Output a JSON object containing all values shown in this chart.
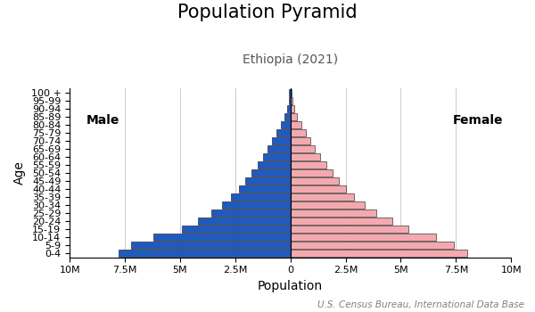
{
  "title": "Population Pyramid",
  "subtitle": "Ethiopia (2021)",
  "xlabel": "Population",
  "ylabel": "Age",
  "source": "U.S. Census Bureau, International Data Base",
  "age_groups": [
    "0-4",
    "5-9",
    "10-14",
    "15-19",
    "20-24",
    "25-29",
    "30-34",
    "35-39",
    "40-44",
    "45-49",
    "50-54",
    "55-59",
    "60-64",
    "65-69",
    "70-74",
    "75-79",
    "80-84",
    "85-89",
    "90-94",
    "95-99",
    "100 +"
  ],
  "male": [
    7800000,
    7200000,
    6200000,
    4900000,
    4200000,
    3600000,
    3100000,
    2700000,
    2350000,
    2050000,
    1750000,
    1500000,
    1250000,
    1050000,
    850000,
    650000,
    450000,
    280000,
    150000,
    80000,
    50000
  ],
  "female": [
    8000000,
    7400000,
    6600000,
    5350000,
    4600000,
    3900000,
    3350000,
    2900000,
    2520000,
    2200000,
    1900000,
    1620000,
    1350000,
    1120000,
    910000,
    700000,
    490000,
    310000,
    170000,
    90000,
    55000
  ],
  "male_color": "#1f5abf",
  "female_color": "#f4a9b0",
  "bar_edge_color": "#111111",
  "xlim": 10000000,
  "xticks": [
    -10000000,
    -7500000,
    -5000000,
    -2500000,
    0,
    2500000,
    5000000,
    7500000,
    10000000
  ],
  "xtick_labels": [
    "10M",
    "7.5M",
    "5M",
    "2.5M",
    "0",
    "2.5M",
    "5M",
    "7.5M",
    "10M"
  ],
  "background_color": "#ffffff",
  "grid_color": "#cccccc",
  "title_fontsize": 15,
  "subtitle_fontsize": 10,
  "label_fontsize": 10,
  "tick_fontsize": 8,
  "source_fontsize": 7.5
}
